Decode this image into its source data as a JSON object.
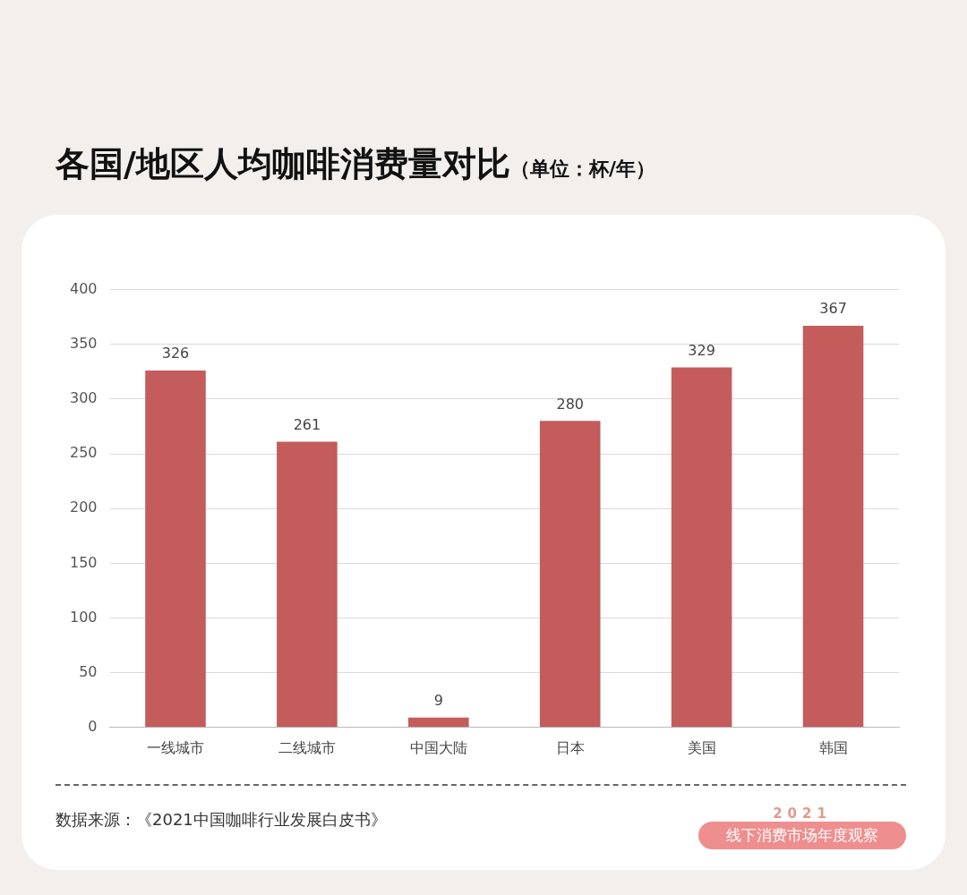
{
  "chart_data": {
    "type": "bar",
    "title": "各国/地区人均咖啡消费量对比",
    "subtitle": "（单位：杯/年）",
    "categories": [
      "一线城市",
      "二线城市",
      "中国大陆",
      "日本",
      "美国",
      "韩国"
    ],
    "values": [
      326,
      261,
      9,
      280,
      329,
      367
    ],
    "color": "#c45c5c",
    "ylim": [
      0,
      400
    ],
    "yticks": [
      0,
      50,
      100,
      150,
      200,
      250,
      300,
      350,
      400
    ],
    "grid": "y",
    "data_labels": true,
    "legend": false,
    "annotations": [
      "数据来源：《2021中国咖啡行业发展白皮书》",
      "2021",
      "线下消费市场年度观察"
    ]
  }
}
